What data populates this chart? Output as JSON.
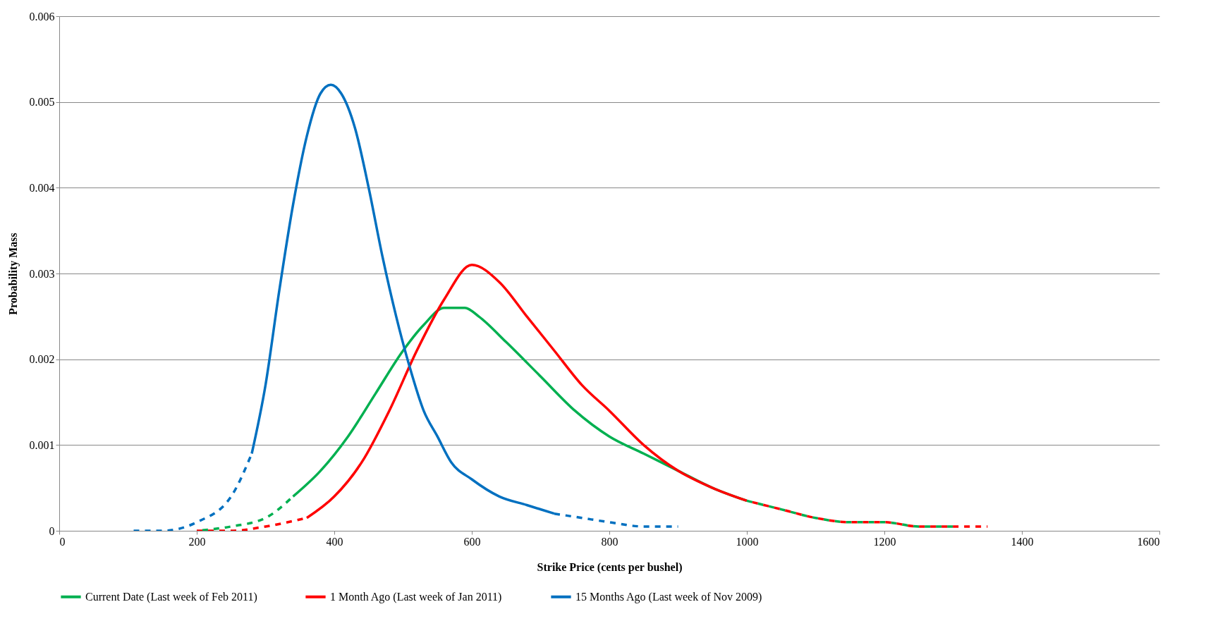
{
  "chart_data": {
    "type": "line",
    "xlabel": "Strike Price (cents per bushel)",
    "ylabel": "Probability Mass",
    "xlim": [
      0,
      1600
    ],
    "xticks": [
      0,
      200,
      400,
      600,
      800,
      1000,
      1200,
      1400,
      1600
    ],
    "ylim": [
      0,
      0.006
    ],
    "yticks": [
      0,
      0.001,
      0.002,
      0.003,
      0.004,
      0.005,
      0.006
    ],
    "grid": "y",
    "legend": "bottom",
    "marker": "none",
    "series": [
      {
        "name": "Current Date (Last week of Feb 2011)",
        "color": "#00b050",
        "line_style": "solid",
        "x": [
          340,
          380,
          420,
          460,
          500,
          530,
          560,
          590,
          610,
          650,
          700,
          750,
          800,
          850,
          900,
          950,
          1000
        ],
        "values": [
          0.0004,
          0.0007,
          0.0011,
          0.0016,
          0.0021,
          0.0024,
          0.0026,
          0.0026,
          0.0025,
          0.0022,
          0.0018,
          0.0014,
          0.0011,
          0.0009,
          0.0007,
          0.0005,
          0.00035
        ]
      },
      {
        "name": "1 Month Ago (Last week of Jan 2011)",
        "color": "#ff0000",
        "line_style": "solid",
        "x": [
          360,
          400,
          440,
          480,
          520,
          560,
          600,
          640,
          680,
          720,
          760,
          800,
          850,
          900,
          950,
          1000
        ],
        "values": [
          0.00015,
          0.0004,
          0.0008,
          0.0014,
          0.0021,
          0.0027,
          0.0031,
          0.0029,
          0.0025,
          0.0021,
          0.0017,
          0.0014,
          0.001,
          0.0007,
          0.0005,
          0.00035
        ]
      },
      {
        "name": "15 Months Ago (Last week of Nov 2009)",
        "color": "#0070c0",
        "line_style": "solid",
        "x": [
          280,
          300,
          320,
          340,
          360,
          380,
          395,
          410,
          430,
          450,
          470,
          490,
          510,
          530,
          550,
          570,
          600,
          640,
          680,
          720
        ],
        "values": [
          0.0009,
          0.0017,
          0.0028,
          0.0038,
          0.0046,
          0.0051,
          0.0052,
          0.0051,
          0.0047,
          0.004,
          0.0032,
          0.0025,
          0.0019,
          0.0014,
          0.0011,
          0.0008,
          0.0006,
          0.0004,
          0.0003,
          0.0002
        ]
      },
      {
        "color": "#00b050",
        "line_style": "dashed",
        "x": [
          200,
          250,
          300,
          340
        ],
        "values": [
          0,
          5e-05,
          0.00015,
          0.0004
        ]
      },
      {
        "color": "#00b050",
        "line_style": "dashed",
        "x": [
          1000,
          1050,
          1100,
          1150,
          1200,
          1250,
          1300
        ],
        "values": [
          0.00035,
          0.00025,
          0.00015,
          0.0001,
          0.0001,
          5e-05,
          5e-05
        ]
      },
      {
        "color": "#ff0000",
        "line_style": "dashed",
        "x": [
          200,
          250,
          300,
          360
        ],
        "values": [
          0,
          0,
          5e-05,
          0.00015
        ]
      },
      {
        "color": "#ff0000",
        "line_style": "dashed",
        "x": [
          1000,
          1050,
          1100,
          1150,
          1200,
          1250,
          1300,
          1350
        ],
        "values": [
          0.00035,
          0.00025,
          0.00015,
          0.0001,
          0.0001,
          5e-05,
          5e-05,
          5e-05
        ]
      },
      {
        "color": "#0070c0",
        "line_style": "dashed",
        "x": [
          100,
          150,
          200,
          250,
          280
        ],
        "values": [
          0,
          0,
          0.0001,
          0.0004,
          0.0009
        ]
      },
      {
        "color": "#0070c0",
        "line_style": "dashed",
        "x": [
          720,
          760,
          800,
          850,
          900
        ],
        "values": [
          0.0002,
          0.00015,
          0.0001,
          5e-05,
          5e-05
        ]
      }
    ]
  }
}
